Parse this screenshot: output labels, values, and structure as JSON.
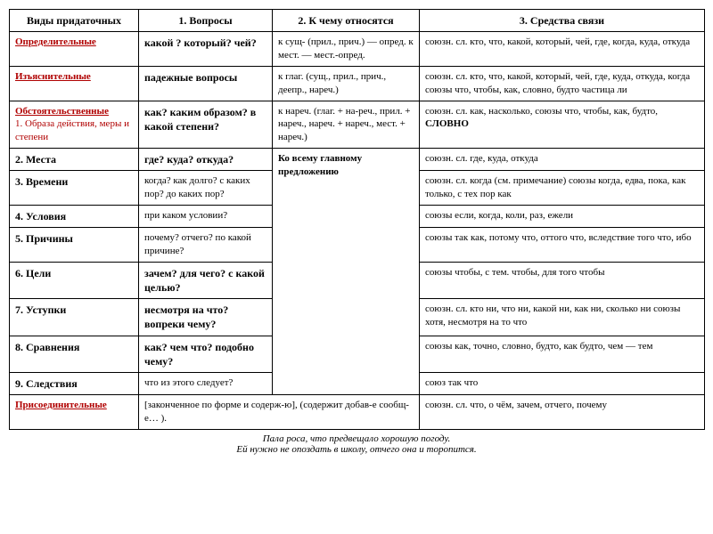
{
  "headers": {
    "h1": "Виды придаточных",
    "h2": "1. Вопросы",
    "h3": "2. К чему относятся",
    "h4": "3. Средства связи"
  },
  "rows": {
    "r1": {
      "type": "Определительные",
      "q": "какой ? который? чей?",
      "rel": "к сущ- (прил., прич.) — опред. к мест. — мест.-опред.",
      "means": "союзн. сл. кто, что, какой, который, чей, где, когда, куда, откуда"
    },
    "r2": {
      "type": "Изъяснительные",
      "q": "падежные вопросы",
      "rel": "к глаг. (сущ., прил., прич., деепр., нареч.)",
      "means": "союзн. сл. кто, что, какой, который, чей, где, куда, откуда, когда союзы что, чтобы, как, словно, будто частица ли"
    },
    "r3": {
      "type": "Обстоятельственные",
      "type2": "1. Образа действия, меры и степени",
      "q": "как? каким образом? в какой степени?",
      "rel": "к нареч. (глаг. + на-реч., прил. + нареч., нареч. + нареч., мест. + нареч.)",
      "means_a": "союзн. сл. как, насколько, союзы что, чтобы, как, будто,",
      "means_b": "СЛОВНО"
    },
    "r4": {
      "type": "2. Места",
      "q": "где? куда? откуда?",
      "rel": "Ко всему главному предложению",
      "means": "союзн. сл. где, куда, откуда"
    },
    "r5": {
      "type": "3. Времени",
      "q": "когда? как долго? с каких пор? до каких пор?",
      "means": "союзн. сл. когда (см. примечание) союзы когда, едва, пока, как только, с тех пор как"
    },
    "r6": {
      "type": "4. Условия",
      "q": "при каком условии?",
      "means": "союзы если, когда, коли, раз, ежели"
    },
    "r7": {
      "type": "5. Причины",
      "q": "почему? отчего? по какой причине?",
      "means": "союзы так как, потому что, оттого что, вследствие того что, ибо"
    },
    "r8": {
      "type": "6. Цели",
      "q": "зачем? для чего? с какой целью?",
      "means": "союзы чтобы, с тем. чтобы, для того чтобы"
    },
    "r9": {
      "type": "7. Уступки",
      "q": "несмотря на что? вопреки чему?",
      "means": "союзн. сл. кто ни, что ни, какой ни, как ни, сколько ни союзы хотя, несмотря на то что"
    },
    "r10": {
      "type": "8. Сравнения",
      "q": "как? чем что? подобно чему?",
      "means": "союзы как, точно, словно, будто, как будто, чем — тем"
    },
    "r11": {
      "type": "9. Следствия",
      "q": "что из этого следует?",
      "means": "союз так что"
    },
    "r12": {
      "type": "Присоединительные",
      "q": "[законченное по форме и содерж-ю], (содержит добав-е сообщ-е… ).",
      "means": "союзн. сл. что, о чём, зачем, отчего, почему"
    }
  },
  "footer": {
    "l1": "Пала роса, что предвещало хорошую погоду.",
    "l2": "Ей нужно не опоздать в школу, отчего она и торопится."
  },
  "colors": {
    "red": "#b00000",
    "border": "#000000",
    "bg": "#ffffff"
  }
}
